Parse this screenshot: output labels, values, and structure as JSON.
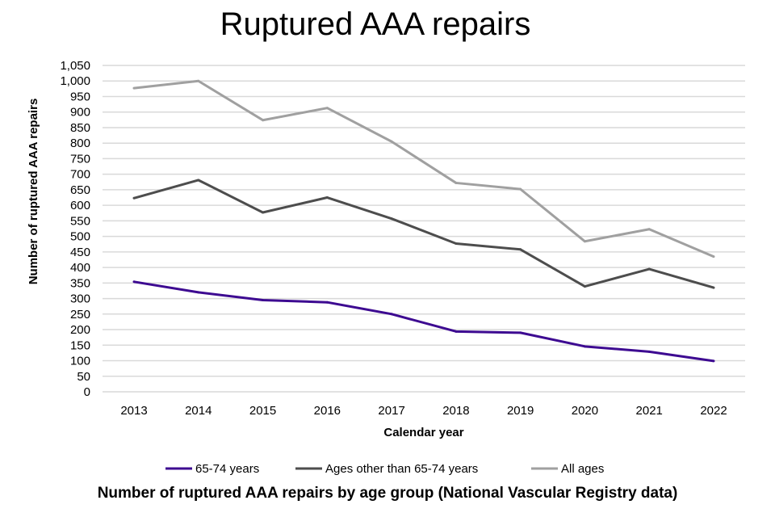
{
  "chart_data": {
    "type": "line",
    "title": "Ruptured AAA repairs",
    "caption": "Number of ruptured AAA repairs by age group (National Vascular Registry data)",
    "xlabel": "Calendar year",
    "ylabel": "Number of ruptured AAA repairs",
    "categories": [
      "2013",
      "2014",
      "2015",
      "2016",
      "2017",
      "2018",
      "2019",
      "2020",
      "2021",
      "2022"
    ],
    "ylim": [
      0,
      1050
    ],
    "yticks": [
      0,
      50,
      100,
      150,
      200,
      250,
      300,
      350,
      400,
      450,
      500,
      550,
      600,
      650,
      700,
      750,
      800,
      850,
      900,
      950,
      1000,
      1050
    ],
    "ytick_labels": [
      "0",
      "50",
      "100",
      "150",
      "200",
      "250",
      "300",
      "350",
      "400",
      "450",
      "500",
      "550",
      "600",
      "650",
      "700",
      "750",
      "800",
      "850",
      "900",
      "950",
      "1,000",
      "1,050"
    ],
    "grid": true,
    "legend_position": "bottom",
    "series": [
      {
        "name": "65-74 years",
        "color": "#3d0a91",
        "values": [
          354,
          320,
          295,
          288,
          250,
          194,
          190,
          146,
          129,
          99
        ]
      },
      {
        "name": "Ages other than 65-74 years",
        "color": "#4d4d4d",
        "values": [
          623,
          681,
          577,
          625,
          557,
          477,
          458,
          339,
          395,
          335
        ]
      },
      {
        "name": "All ages",
        "color": "#a0a0a0",
        "values": [
          977,
          1000,
          874,
          913,
          805,
          672,
          652,
          484,
          523,
          435
        ]
      }
    ]
  }
}
